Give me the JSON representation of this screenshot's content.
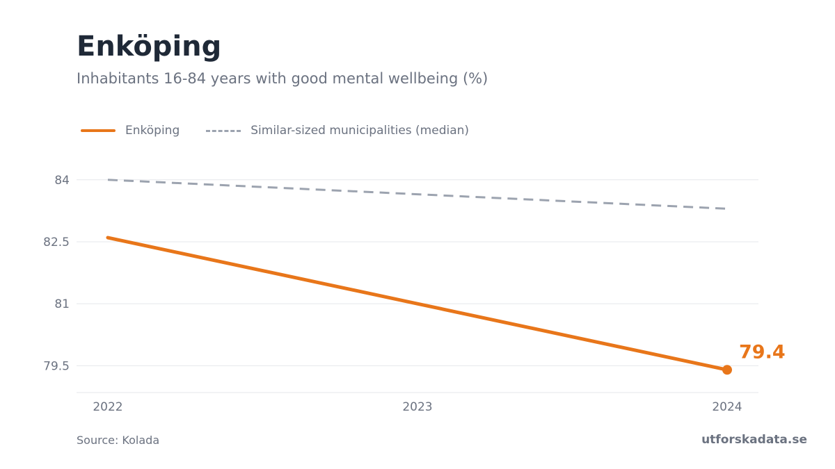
{
  "header": {
    "title": "Enköping",
    "subtitle": "Inhabitants 16-84 years with good mental wellbeing (%)"
  },
  "legend": {
    "items": [
      {
        "label": "Enköping",
        "style": "solid",
        "color": "#e8761a"
      },
      {
        "label": "Similar-sized municipalities (median)",
        "style": "dashed",
        "color": "#9ca3af"
      }
    ]
  },
  "chart_data": {
    "type": "line",
    "x": [
      "2022",
      "2023",
      "2024"
    ],
    "series": [
      {
        "name": "Enköping",
        "values": [
          82.6,
          81.0,
          79.4
        ],
        "color": "#e8761a"
      },
      {
        "name": "Similar-sized municipalities (median)",
        "values": [
          84.0,
          83.65,
          83.3
        ],
        "color": "#9ca3af"
      }
    ],
    "yticks": [
      79.5,
      81,
      82.5,
      84
    ],
    "ytick_labels": [
      "79.5",
      "81",
      "82.5",
      "84"
    ],
    "ylim": [
      78.85,
      84.4
    ],
    "end_label": "79.4",
    "grid": true
  },
  "footer": {
    "source": "Source: Kolada",
    "brand": "utforskadata.se"
  }
}
